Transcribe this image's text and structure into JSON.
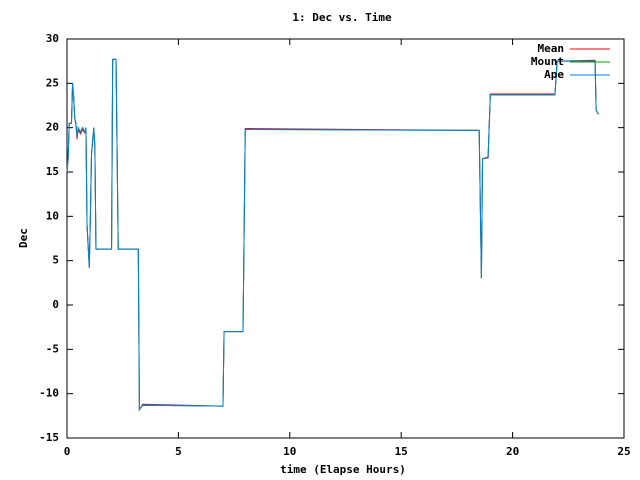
{
  "chart_data": {
    "type": "line",
    "title": "1: Dec vs. Time",
    "xlabel": "time (Elapse Hours)",
    "ylabel": "Dec",
    "x": [
      0,
      0.05,
      0.1,
      0.2,
      0.25,
      0.3,
      0.35,
      0.4,
      0.45,
      0.5,
      0.6,
      0.7,
      0.8,
      0.85,
      0.9,
      1.0,
      1.05,
      1.1,
      1.2,
      1.25,
      1.3,
      2.0,
      2.05,
      2.2,
      2.3,
      3.2,
      3.25,
      3.4,
      7.0,
      7.05,
      7.9,
      8.0,
      18.5,
      18.6,
      18.65,
      18.9,
      19.0,
      21.9,
      22.0,
      23.7,
      23.75,
      23.85
    ],
    "series": [
      {
        "name": "Mean",
        "color": "#ff0000",
        "values": [
          15,
          16.5,
          20.5,
          20.5,
          24.8,
          23.3,
          21,
          20.3,
          18.7,
          19.8,
          19.3,
          19.8,
          19.4,
          19.9,
          9,
          4.3,
          10,
          17,
          19.8,
          18,
          6.3,
          6.3,
          27.7,
          27.7,
          6.3,
          6.3,
          -11.8,
          -11.2,
          -11.4,
          -3,
          -3,
          19.9,
          19.7,
          3.1,
          16.5,
          16.6,
          23.8,
          23.8,
          27.5,
          27.6,
          22,
          21.5
        ]
      },
      {
        "name": "Mount",
        "color": "#00a000",
        "values": [
          15,
          16.5,
          20.5,
          20.5,
          25,
          23.5,
          21,
          20.5,
          19,
          20,
          19.5,
          20,
          19.5,
          20,
          9,
          4.2,
          10,
          17,
          20,
          18,
          6.3,
          6.3,
          27.7,
          27.7,
          6.3,
          6.3,
          -11.8,
          -11.3,
          -11.4,
          -3,
          -3,
          19.8,
          19.7,
          3,
          16.5,
          16.7,
          23.7,
          23.7,
          27.5,
          27.5,
          22,
          21.5
        ]
      },
      {
        "name": "Ape",
        "color": "#0080e0",
        "values": [
          15,
          16.5,
          20.5,
          20.5,
          25,
          23.5,
          21,
          20.5,
          19,
          20,
          19.5,
          20,
          19.5,
          20,
          9,
          4.2,
          10,
          17,
          20,
          18,
          6.3,
          6.3,
          27.7,
          27.7,
          6.3,
          6.3,
          -11.8,
          -11.3,
          -11.4,
          -3,
          -3,
          19.8,
          19.7,
          3,
          16.5,
          16.7,
          23.7,
          23.7,
          27.5,
          27.5,
          22,
          21.5
        ]
      }
    ],
    "xlim": [
      0,
      25
    ],
    "xticks": [
      0,
      5,
      10,
      15,
      20,
      25
    ],
    "ylim": [
      -15,
      30
    ],
    "yticks": [
      -15,
      -10,
      -5,
      0,
      5,
      10,
      15,
      20,
      25,
      30
    ],
    "legend": "top right"
  }
}
